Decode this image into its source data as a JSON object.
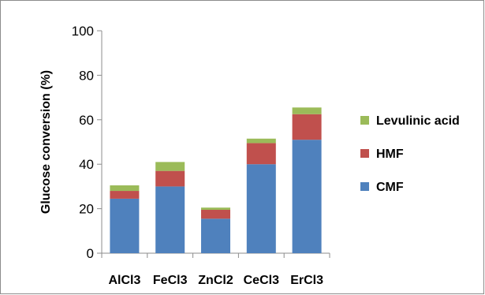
{
  "chart_data": {
    "type": "bar",
    "stacked": true,
    "categories": [
      "AlCl3",
      "FeCl3",
      "ZnCl2",
      "CeCl3",
      "ErCl3"
    ],
    "series": [
      {
        "name": "CMF",
        "color": "#4F81BD",
        "values": [
          24.5,
          30,
          15.5,
          40,
          51
        ]
      },
      {
        "name": "HMF",
        "color": "#C0504D",
        "values": [
          3.5,
          7,
          4,
          9.5,
          11.5
        ]
      },
      {
        "name": "Levulinic acid",
        "color": "#9BBB59",
        "values": [
          2.5,
          4,
          1,
          2,
          3
        ]
      }
    ],
    "ylabel": "Glucose conversion (%)",
    "xlabel": "",
    "ylim": [
      0,
      100
    ],
    "yticks": [
      "0",
      "20",
      "40",
      "60",
      "80",
      "100"
    ],
    "legend_position": "right",
    "legend_order": [
      "Levulinic acid",
      "HMF",
      "CMF"
    ],
    "grid": false
  }
}
